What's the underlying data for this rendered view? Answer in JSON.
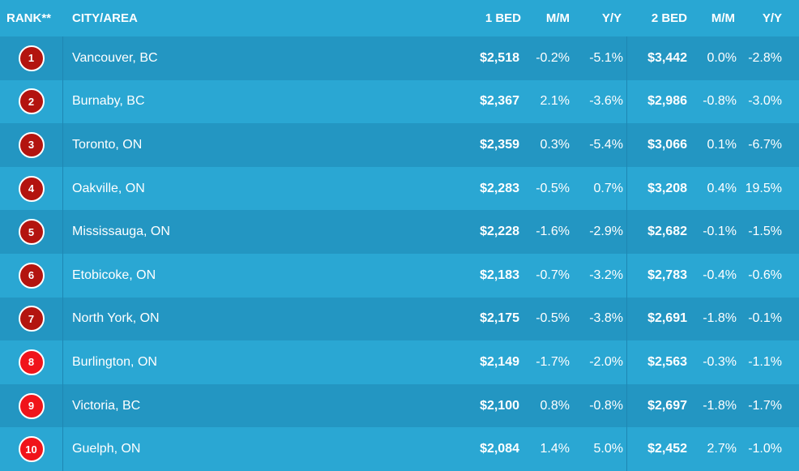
{
  "header": {
    "rank": "RANK**",
    "city": "CITY/AREA",
    "bed1": "1 BED",
    "mm1": "M/M",
    "yy1": "Y/Y",
    "bed2": "2 BED",
    "mm2": "M/M",
    "yy2": "Y/Y"
  },
  "colors": {
    "badge_dark": "#b3140f",
    "badge_bright": "#f0141a",
    "row_dark": "#2396c2",
    "row_light": "#2aa7d3"
  },
  "rows": [
    {
      "rank": "1",
      "city": "Vancouver, BC",
      "bed1": "$2,518",
      "mm1": "-0.2%",
      "yy1": "-5.1%",
      "bed2": "$3,442",
      "mm2": "0.0%",
      "yy2": "-2.8%"
    },
    {
      "rank": "2",
      "city": "Burnaby, BC",
      "bed1": "$2,367",
      "mm1": "2.1%",
      "yy1": "-3.6%",
      "bed2": "$2,986",
      "mm2": "-0.8%",
      "yy2": "-3.0%"
    },
    {
      "rank": "3",
      "city": "Toronto, ON",
      "bed1": "$2,359",
      "mm1": "0.3%",
      "yy1": "-5.4%",
      "bed2": "$3,066",
      "mm2": "0.1%",
      "yy2": "-6.7%"
    },
    {
      "rank": "4",
      "city": "Oakville, ON",
      "bed1": "$2,283",
      "mm1": "-0.5%",
      "yy1": "0.7%",
      "bed2": "$3,208",
      "mm2": "0.4%",
      "yy2": "19.5%"
    },
    {
      "rank": "5",
      "city": "Mississauga, ON",
      "bed1": "$2,228",
      "mm1": "-1.6%",
      "yy1": "-2.9%",
      "bed2": "$2,682",
      "mm2": "-0.1%",
      "yy2": "-1.5%"
    },
    {
      "rank": "6",
      "city": "Etobicoke, ON",
      "bed1": "$2,183",
      "mm1": "-0.7%",
      "yy1": "-3.2%",
      "bed2": "$2,783",
      "mm2": "-0.4%",
      "yy2": "-0.6%"
    },
    {
      "rank": "7",
      "city": "North York, ON",
      "bed1": "$2,175",
      "mm1": "-0.5%",
      "yy1": "-3.8%",
      "bed2": "$2,691",
      "mm2": "-1.8%",
      "yy2": "-0.1%"
    },
    {
      "rank": "8",
      "city": "Burlington, ON",
      "bed1": "$2,149",
      "mm1": "-1.7%",
      "yy1": "-2.0%",
      "bed2": "$2,563",
      "mm2": "-0.3%",
      "yy2": "-1.1%"
    },
    {
      "rank": "9",
      "city": "Victoria, BC",
      "bed1": "$2,100",
      "mm1": "0.8%",
      "yy1": "-0.8%",
      "bed2": "$2,697",
      "mm2": "-1.8%",
      "yy2": "-1.7%"
    },
    {
      "rank": "10",
      "city": "Guelph, ON",
      "bed1": "$2,084",
      "mm1": "1.4%",
      "yy1": "5.0%",
      "bed2": "$2,452",
      "mm2": "2.7%",
      "yy2": "-1.0%"
    }
  ]
}
